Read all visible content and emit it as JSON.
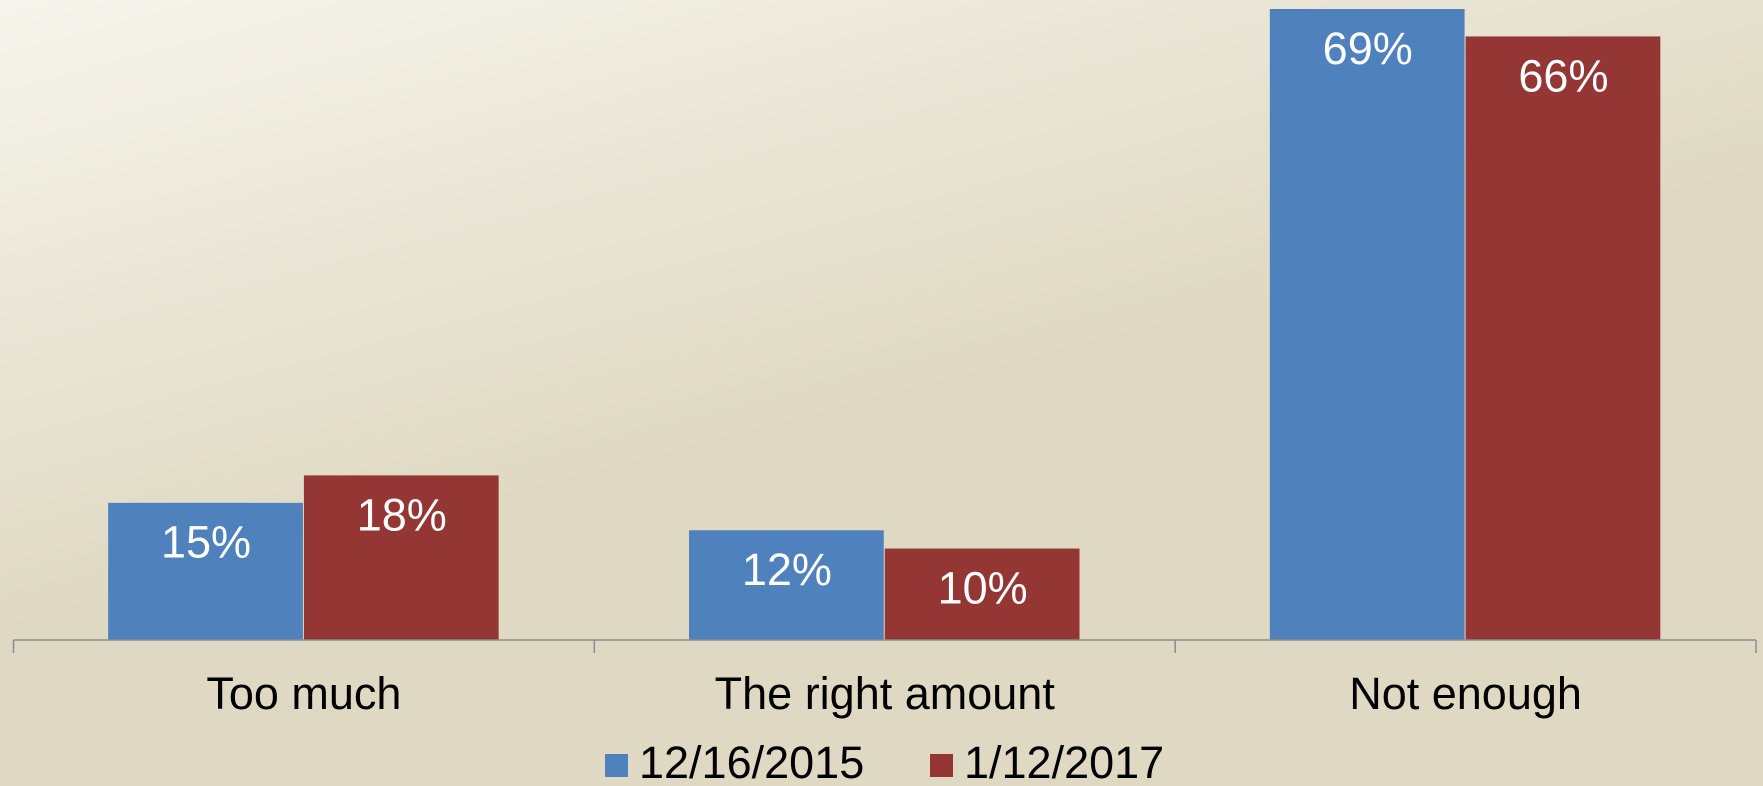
{
  "chart_data": {
    "type": "bar",
    "categories": [
      "Too much",
      "The right amount",
      "Not enough"
    ],
    "series": [
      {
        "name": "12/16/2015",
        "color": "#4f81bd",
        "values": [
          15,
          12,
          69
        ],
        "value_labels": [
          "15%",
          "12%",
          "69%"
        ]
      },
      {
        "name": "1/12/2017",
        "color": "#943634",
        "values": [
          18,
          10,
          66
        ],
        "value_labels": [
          "18%",
          "10%",
          "66%"
        ]
      }
    ],
    "legend": "bottom"
  }
}
